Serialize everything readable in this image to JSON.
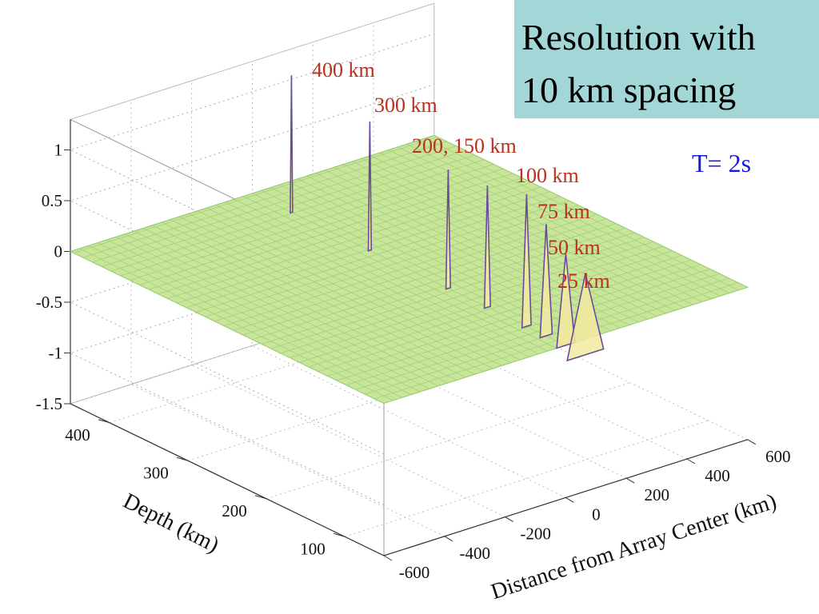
{
  "chart_data": {
    "type": "surface",
    "title_lines": [
      "Resolution with",
      "10 km spacing"
    ],
    "subtitle": "T= 2s",
    "xlabel": "Distance from Array Center (km)",
    "ylabel": "Depth (km)",
    "xlim": [
      -600,
      600
    ],
    "xticks": [
      -600,
      -400,
      -200,
      0,
      200,
      400,
      600
    ],
    "ylim": [
      50,
      450
    ],
    "yticks": [
      100,
      200,
      300,
      400
    ],
    "zlim": [
      -1.5,
      1.3
    ],
    "zticks": [
      -1.5,
      -1,
      -0.5,
      0,
      0.5,
      1
    ],
    "grid": true,
    "surface_color": "#c8e59a",
    "peaks": {
      "color": "#f3eaa0",
      "edge_color": "#6a4c9c",
      "depth": [
        400,
        300,
        200,
        150,
        100,
        75,
        50,
        25
      ],
      "values": [
        1.35,
        1.27,
        1.17,
        1.2,
        1.3,
        1.1,
        0.9,
        0.8
      ]
    },
    "annotations": [
      "400 km",
      "300 km",
      "200, 150 km",
      "100 km",
      "75 km",
      "50 km",
      "25 km"
    ]
  }
}
